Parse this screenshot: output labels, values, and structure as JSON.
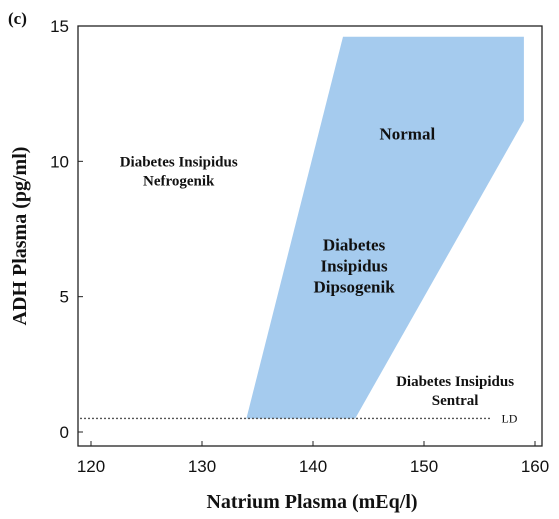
{
  "chart_data": {
    "type": "area",
    "panel_label": "(c)",
    "xlabel": "Natrium Plasma (mEq/l)",
    "ylabel": "ADH Plasma (pg/ml)",
    "xlim": [
      120,
      160
    ],
    "ylim": [
      0,
      15
    ],
    "xticks": [
      {
        "value": 120,
        "label": "120"
      },
      {
        "value": 130,
        "label": "130"
      },
      {
        "value": 140,
        "label": "140"
      },
      {
        "value": 150,
        "label": "150"
      },
      {
        "value": 160,
        "label": "160"
      }
    ],
    "yticks": [
      {
        "value": 0,
        "label": "0"
      },
      {
        "value": 5,
        "label": "5"
      },
      {
        "value": 10,
        "label": "10"
      },
      {
        "value": 15,
        "label": "15"
      }
    ],
    "region": {
      "color": "#a5cbee",
      "polygon": [
        {
          "x": 134.0,
          "y": 0.5
        },
        {
          "x": 143.8,
          "y": 0.5
        },
        {
          "x": 159.0,
          "y": 11.5
        },
        {
          "x": 159.0,
          "y": 14.6
        },
        {
          "x": 142.7,
          "y": 14.6
        }
      ]
    },
    "detection_limit": {
      "y": 0.5,
      "x_from": 120,
      "x_to": 156,
      "label": "LD",
      "label_x": 157.7
    },
    "annotations": [
      {
        "lines": [
          "Normal"
        ],
        "x": 148.5,
        "y": 10.8,
        "size": "big"
      },
      {
        "lines": [
          "Diabetes",
          "Insipidus",
          "Dipsogenik"
        ],
        "x": 143.7,
        "y": 6.7,
        "size": "big"
      },
      {
        "lines": [
          "Diabetes Insipidus",
          "Nefrogenik"
        ],
        "x": 127.9,
        "y": 9.8,
        "size": "normal"
      },
      {
        "lines": [
          "Diabetes Insipidus",
          "Sentral"
        ],
        "x": 152.8,
        "y": 1.7,
        "size": "normal"
      }
    ],
    "grid": false,
    "legend": "none"
  }
}
